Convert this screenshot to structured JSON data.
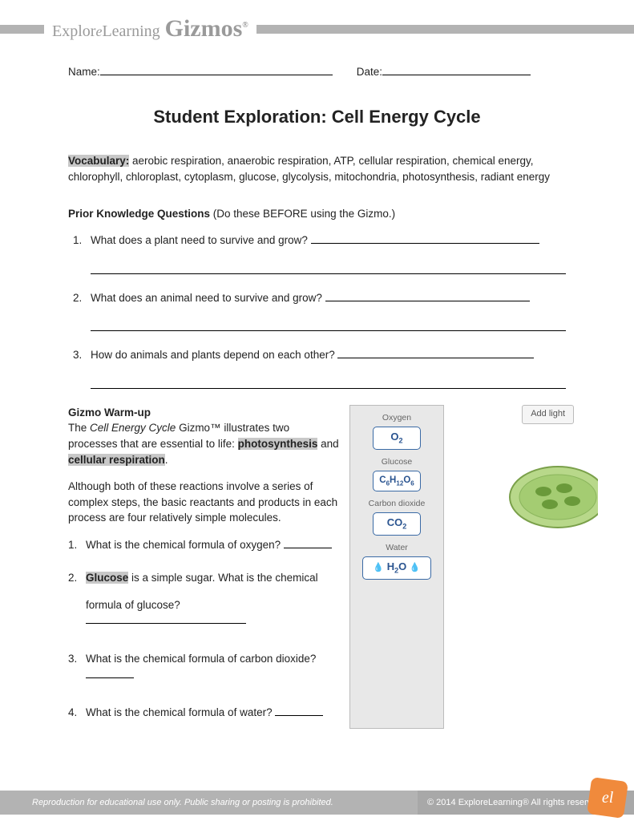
{
  "header": {
    "logo_explore": "Explor",
    "logo_script": "e",
    "logo_learning": "Learning",
    "logo_gizmos": "Gizmos",
    "logo_reg": "®"
  },
  "fields": {
    "name_label": "Name:",
    "date_label": "Date:",
    "name_underline_width": 290,
    "date_underline_width": 185
  },
  "title": "Student Exploration: Cell Energy Cycle",
  "vocab": {
    "label": "Vocabulary:",
    "text": " aerobic respiration, anaerobic respiration, ATP, cellular respiration, chemical energy, chlorophyll, chloroplast, cytoplasm, glucose, glycolysis, mitochondria, photosynthesis, radiant energy"
  },
  "prior": {
    "head_bold": "Prior Knowledge Questions",
    "head_rest": " (Do these BEFORE using the Gizmo.)",
    "q1": {
      "num": "1.",
      "text": "What does a plant need to survive and grow? ",
      "uw": 285
    },
    "q2": {
      "num": "2.",
      "text": "What does an animal need to survive and grow? ",
      "uw": 255
    },
    "q3": {
      "num": "3.",
      "text": "How do animals and plants depend on each other? ",
      "uw": 245
    }
  },
  "warmup": {
    "head": "Gizmo Warm-up",
    "p1a": "The ",
    "p1_italic": "Cell Energy Cycle",
    "p1b": " Gizmo™ illustrates two processes that are essential to life: ",
    "hl1": "photosynthesis",
    "p1c": " and ",
    "hl2": "cellular respiration",
    "p1d": ".",
    "p2": "Although both of these reactions involve a series of complex steps, the basic reactants and products in each process are four relatively simple molecules.",
    "q1": {
      "num": "1.",
      "text": "What is the chemical formula of oxygen? ",
      "uw": 60
    },
    "q2": {
      "num": "2.",
      "pre": "",
      "hl": "Glucose",
      "text": " is a simple sugar. What is the chemical",
      "line2": "formula of glucose? ",
      "uw": 200
    },
    "q3": {
      "num": "3.",
      "text": "What is the chemical formula of carbon dioxide? ",
      "uw": 60
    },
    "q4": {
      "num": "4.",
      "text": "What is the chemical formula of water? ",
      "uw": 60
    }
  },
  "molecules": {
    "oxygen": {
      "label": "Oxygen",
      "formula": "O2"
    },
    "glucose": {
      "label": "Glucose",
      "formula": "C6H12O6"
    },
    "co2": {
      "label": "Carbon dioxide",
      "formula": "CO2"
    },
    "water": {
      "label": "Water",
      "formula": "H2O"
    }
  },
  "right_panel": {
    "add_light": "Add light"
  },
  "footer": {
    "left": "Reproduction for educational use only. Public sharing or posting is prohibited.",
    "right": "© 2014 ExploreLearning®  All rights reserved",
    "logo_text": "el"
  },
  "colors": {
    "header_gray": "#b3b3b3",
    "logo_gray": "#9a9a9a",
    "highlight_bg": "#c8c8c8",
    "mol_border": "#3a6aa5",
    "mol_text": "#2a5490",
    "panel_bg": "#e8e8e8",
    "footer_logo_bg": "#f08a3c",
    "cell_fill": "#b8d88a",
    "cell_stroke": "#7aa04a",
    "cell_inner": "#6a9a3a"
  }
}
